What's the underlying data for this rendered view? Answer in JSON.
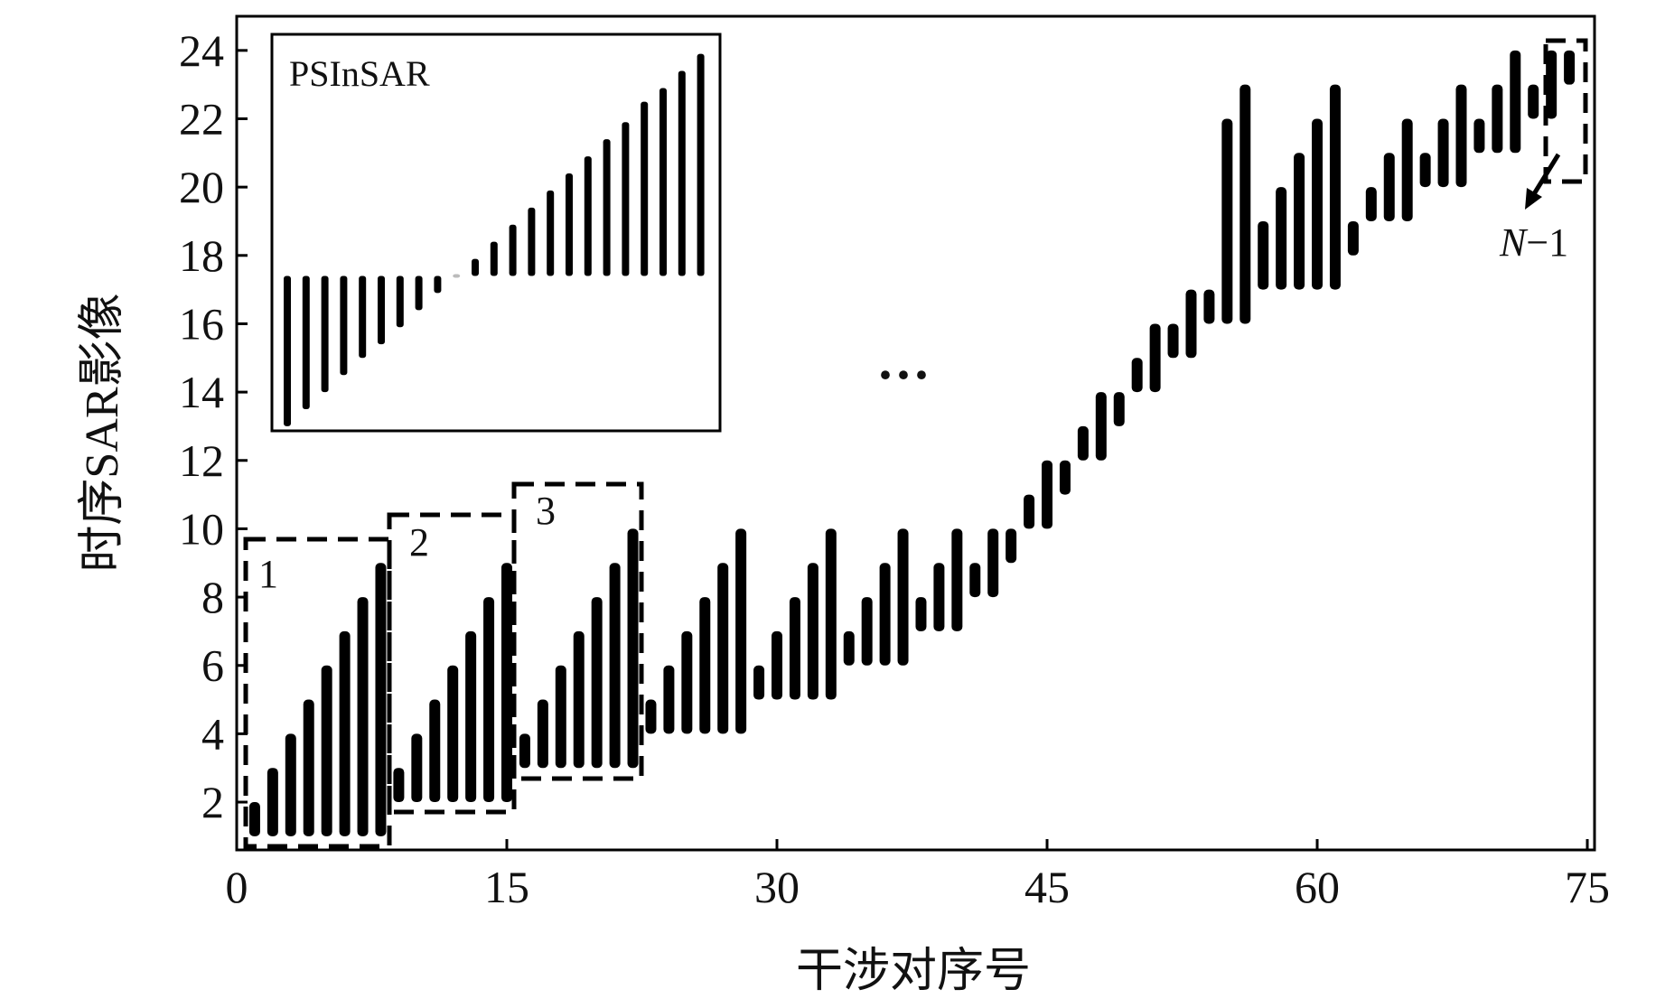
{
  "chart_data": {
    "type": "range-bar",
    "x_label": "干涉对序号",
    "y_label": "时序SAR影像",
    "xlim": [
      0,
      75.4
    ],
    "ylim": [
      0.6,
      25
    ],
    "xticks": [
      0,
      15,
      30,
      45,
      60,
      75
    ],
    "yticks": [
      2,
      4,
      6,
      8,
      10,
      12,
      14,
      16,
      18,
      20,
      22,
      24
    ],
    "color": "#000000",
    "x": [
      1,
      2,
      3,
      4,
      5,
      6,
      7,
      8,
      9,
      10,
      11,
      12,
      13,
      14,
      15,
      16,
      17,
      18,
      19,
      20,
      21,
      22,
      23,
      24,
      25,
      26,
      27,
      28,
      29,
      30,
      31,
      32,
      33,
      34,
      35,
      36,
      37,
      38,
      39,
      40,
      41,
      42,
      43,
      44,
      45,
      46,
      47,
      48,
      49,
      50,
      51,
      52,
      53,
      54,
      55,
      56,
      57,
      58,
      59,
      60,
      61,
      62,
      63,
      64,
      65,
      66,
      67,
      68,
      69,
      70,
      71,
      72,
      73,
      74
    ],
    "start": [
      1,
      1,
      1,
      1,
      1,
      1,
      1,
      1,
      2,
      2,
      2,
      2,
      2,
      2,
      2,
      3,
      3,
      3,
      3,
      3,
      3,
      3,
      4,
      4,
      4,
      4,
      4,
      4,
      5,
      5,
      5,
      5,
      5,
      6,
      6,
      6,
      6,
      7,
      7,
      7,
      8,
      8,
      9,
      10,
      10,
      11,
      12,
      12,
      13,
      14,
      14,
      15,
      15,
      16,
      16,
      16,
      17,
      17,
      17,
      17,
      17,
      18,
      19,
      19,
      19,
      20,
      20,
      20,
      21,
      21,
      21,
      22,
      22,
      23
    ],
    "end": [
      2,
      3,
      4,
      5,
      6,
      7,
      8,
      9,
      3,
      4,
      5,
      6,
      7,
      8,
      9,
      4,
      5,
      6,
      7,
      8,
      9,
      10,
      5,
      6,
      7,
      8,
      9,
      10,
      6,
      7,
      8,
      9,
      10,
      7,
      8,
      9,
      10,
      8,
      9,
      10,
      9,
      10,
      10,
      11,
      12,
      12,
      13,
      14,
      14,
      15,
      16,
      16,
      17,
      17,
      22,
      23,
      19,
      20,
      21,
      22,
      23,
      19,
      20,
      21,
      22,
      21,
      22,
      23,
      22,
      23,
      24,
      23,
      24,
      24
    ],
    "annotations": [
      "1",
      "2",
      "3",
      "N",
      "−1",
      "···"
    ],
    "inset": {
      "title": "PSInSAR",
      "start": [
        13.0,
        13.5,
        14.0,
        14.5,
        15.0,
        15.4,
        15.9,
        16.4,
        16.9,
        17.4,
        17.4,
        17.4,
        17.4,
        17.4,
        17.4,
        17.4,
        17.4,
        17.4,
        17.4,
        17.4,
        17.4,
        17.4,
        17.4
      ],
      "end": [
        17.4,
        17.4,
        17.4,
        17.4,
        17.4,
        17.4,
        17.4,
        17.4,
        17.4,
        17.4,
        17.9,
        18.4,
        18.9,
        19.4,
        19.9,
        20.4,
        20.9,
        21.4,
        21.9,
        22.5,
        22.9,
        23.4,
        23.9
      ]
    }
  }
}
